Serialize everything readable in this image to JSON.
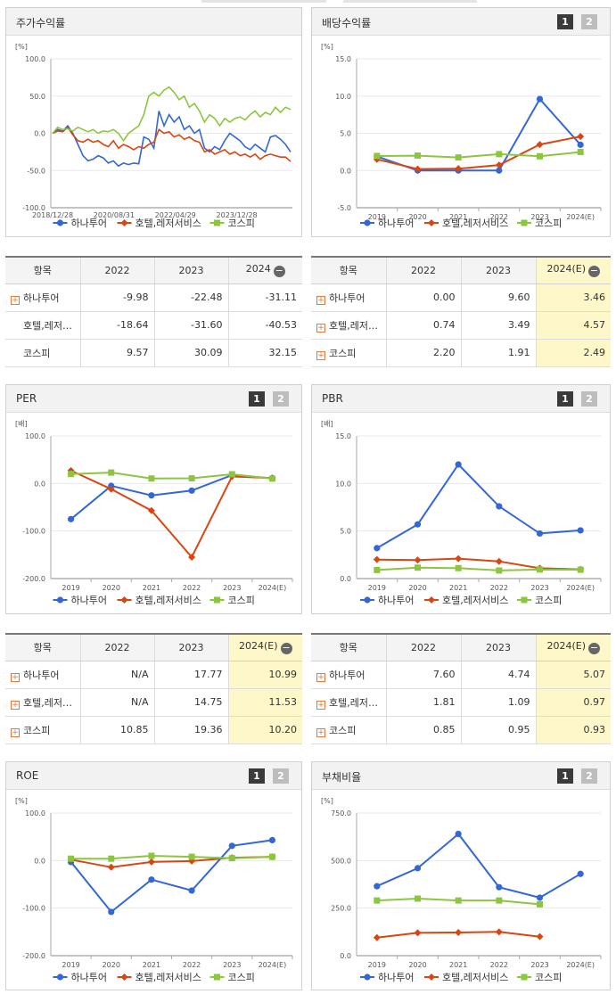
{
  "colors": {
    "hana": "#3367d6",
    "hotel": "#d94612",
    "kospi": "#8cc63f"
  },
  "legend": [
    "하나투어",
    "호텔,레저서비스",
    "코스피"
  ],
  "panels": {
    "stock": {
      "title": "주가수익률"
    },
    "div": {
      "title": "배당수익률",
      "btn1": "1",
      "btn2": "2"
    },
    "per": {
      "title": "PER",
      "btn1": "1",
      "btn2": "2"
    },
    "pbr": {
      "title": "PBR",
      "btn1": "1",
      "btn2": "2"
    },
    "roe": {
      "title": "ROE",
      "btn1": "1",
      "btn2": "2"
    },
    "debt": {
      "title": "부채비율",
      "btn1": "1",
      "btn2": "2"
    }
  },
  "chart_data": [
    {
      "id": "stock",
      "type": "line",
      "unit": "[%]",
      "ylim": [
        -100,
        100
      ],
      "yticks": [
        "100.0",
        "50.0",
        "0.0",
        "-50.0",
        "-100.0"
      ],
      "xticks": [
        "2018/12/28",
        "2020/08/31",
        "2022/04/29",
        "2023/12/28"
      ],
      "series": [
        {
          "name": "하나투어",
          "values": [
            0,
            5,
            3,
            10,
            0,
            -15,
            -30,
            -37,
            -35,
            -30,
            -33,
            -40,
            -37,
            -44,
            -40,
            -42,
            -40,
            -41,
            -5,
            -8,
            -20,
            30,
            10,
            25,
            15,
            22,
            5,
            10,
            0,
            5,
            -20,
            -25,
            -18,
            -22,
            -10,
            0,
            -5,
            -10,
            -18,
            -22,
            -15,
            -20,
            -25,
            -5,
            -3,
            -8,
            -15,
            -25
          ]
        },
        {
          "name": "호텔,레저서비스",
          "values": [
            0,
            3,
            2,
            8,
            -2,
            -10,
            -12,
            -8,
            -12,
            -10,
            -15,
            -18,
            -10,
            -20,
            -15,
            -18,
            -22,
            -18,
            -20,
            -15,
            -12,
            5,
            0,
            2,
            -5,
            -2,
            -8,
            -5,
            -10,
            -12,
            -25,
            -22,
            -28,
            -25,
            -22,
            -28,
            -25,
            -30,
            -28,
            -32,
            -28,
            -35,
            -30,
            -28,
            -30,
            -32,
            -32,
            -38
          ]
        },
        {
          "name": "코스피",
          "values": [
            0,
            8,
            5,
            6,
            3,
            8,
            5,
            2,
            5,
            0,
            3,
            2,
            5,
            0,
            -10,
            0,
            5,
            10,
            25,
            50,
            55,
            50,
            58,
            62,
            55,
            45,
            50,
            35,
            40,
            30,
            15,
            25,
            20,
            10,
            20,
            15,
            20,
            22,
            18,
            25,
            30,
            22,
            28,
            25,
            35,
            28,
            35,
            32
          ]
        }
      ]
    },
    {
      "id": "div",
      "type": "line",
      "unit": "[%]",
      "ylim": [
        -5,
        15
      ],
      "yticks": [
        "15.0",
        "10.0",
        "5.0",
        "0.0",
        "-5.0"
      ],
      "x": [
        "2019",
        "2020",
        "2021",
        "2022",
        "2023",
        "2024(E)"
      ],
      "series": [
        {
          "name": "하나투어",
          "values": [
            1.9,
            0.0,
            0.0,
            0.0,
            9.6,
            3.46
          ]
        },
        {
          "name": "호텔,레저서비스",
          "values": [
            1.5,
            0.2,
            0.25,
            0.74,
            3.49,
            4.57
          ]
        },
        {
          "name": "코스피",
          "values": [
            1.95,
            2.0,
            1.75,
            2.2,
            1.91,
            2.49
          ]
        }
      ]
    },
    {
      "id": "per",
      "type": "line",
      "unit": "[배]",
      "ylim": [
        -200,
        100
      ],
      "yticks": [
        "100.0",
        "0.0",
        "-100.0",
        "-200.0"
      ],
      "x": [
        "2019",
        "2020",
        "2021",
        "2022",
        "2023",
        "2024(E)"
      ],
      "series": [
        {
          "name": "하나투어",
          "values": [
            -75,
            -5,
            -25,
            -15,
            17.77,
            10.99
          ]
        },
        {
          "name": "호텔,레저서비스",
          "values": [
            27,
            -12,
            -57,
            -155,
            14.75,
            11.53
          ]
        },
        {
          "name": "코스피",
          "values": [
            20,
            23,
            10.5,
            10.85,
            19.36,
            10.2
          ]
        }
      ]
    },
    {
      "id": "pbr",
      "type": "line",
      "unit": "[배]",
      "ylim": [
        0,
        15
      ],
      "yticks": [
        "15.0",
        "10.0",
        "5.0",
        "0.0"
      ],
      "x": [
        "2019",
        "2020",
        "2021",
        "2022",
        "2023",
        "2024(E)"
      ],
      "series": [
        {
          "name": "하나투어",
          "values": [
            3.2,
            5.7,
            12.0,
            7.6,
            4.74,
            5.07
          ]
        },
        {
          "name": "호텔,레저서비스",
          "values": [
            2.0,
            1.95,
            2.1,
            1.81,
            1.09,
            0.97
          ]
        },
        {
          "name": "코스피",
          "values": [
            0.9,
            1.15,
            1.1,
            0.85,
            0.95,
            0.93
          ]
        }
      ]
    },
    {
      "id": "roe",
      "type": "line",
      "unit": "[%]",
      "ylim": [
        -200,
        100
      ],
      "yticks": [
        "100.0",
        "0.0",
        "-100.0",
        "-200.0"
      ],
      "x": [
        "2019",
        "2020",
        "2021",
        "2022",
        "2023",
        "2024(E)"
      ],
      "series": [
        {
          "name": "하나투어",
          "values": [
            -3,
            -108,
            -40,
            -63,
            31,
            43
          ]
        },
        {
          "name": "호텔,레저서비스",
          "values": [
            2,
            -14,
            -3,
            -1,
            6,
            8
          ]
        },
        {
          "name": "코스피",
          "values": [
            4,
            4,
            10,
            8,
            5,
            8
          ]
        }
      ]
    },
    {
      "id": "debt",
      "type": "line",
      "unit": "[%]",
      "ylim": [
        0,
        750
      ],
      "yticks": [
        "750.0",
        "500.0",
        "250.0",
        "0.0"
      ],
      "x": [
        "2019",
        "2020",
        "2021",
        "2022",
        "2023",
        "2024(E)"
      ],
      "series": [
        {
          "name": "하나투어",
          "values": [
            365,
            460,
            640,
            360,
            305,
            430
          ]
        },
        {
          "name": "호텔,레저서비스",
          "values": [
            95,
            120,
            122,
            125,
            100,
            null
          ]
        },
        {
          "name": "코스피",
          "values": [
            290,
            300,
            290,
            290,
            270,
            null
          ]
        }
      ]
    }
  ],
  "tables": {
    "stock": {
      "headers": [
        "항목",
        "2022",
        "2023",
        "2024"
      ],
      "rows": [
        {
          "name": "하나투어",
          "plus": true,
          "v": [
            "-9.98",
            "-22.48",
            "-31.11"
          ]
        },
        {
          "name": "호텔,레저…",
          "plus": false,
          "v": [
            "-18.64",
            "-31.60",
            "-40.53"
          ]
        },
        {
          "name": "코스피",
          "plus": false,
          "v": [
            "9.57",
            "30.09",
            "32.15"
          ]
        }
      ]
    },
    "div": {
      "headers": [
        "항목",
        "2022",
        "2023",
        "2024(E)"
      ],
      "rows": [
        {
          "name": "하나투어",
          "v": [
            "0.00",
            "9.60",
            "3.46"
          ]
        },
        {
          "name": "호텔,레저…",
          "v": [
            "0.74",
            "3.49",
            "4.57"
          ]
        },
        {
          "name": "코스피",
          "v": [
            "2.20",
            "1.91",
            "2.49"
          ]
        }
      ]
    },
    "per": {
      "headers": [
        "항목",
        "2022",
        "2023",
        "2024(E)"
      ],
      "rows": [
        {
          "name": "하나투어",
          "v": [
            "N/A",
            "17.77",
            "10.99"
          ]
        },
        {
          "name": "호텔,레저…",
          "v": [
            "N/A",
            "14.75",
            "11.53"
          ]
        },
        {
          "name": "코스피",
          "v": [
            "10.85",
            "19.36",
            "10.20"
          ]
        }
      ]
    },
    "pbr": {
      "headers": [
        "항목",
        "2022",
        "2023",
        "2024(E)"
      ],
      "rows": [
        {
          "name": "하나투어",
          "v": [
            "7.60",
            "4.74",
            "5.07"
          ]
        },
        {
          "name": "호텔,레저…",
          "v": [
            "1.81",
            "1.09",
            "0.97"
          ]
        },
        {
          "name": "코스피",
          "v": [
            "0.85",
            "0.95",
            "0.93"
          ]
        }
      ]
    }
  }
}
